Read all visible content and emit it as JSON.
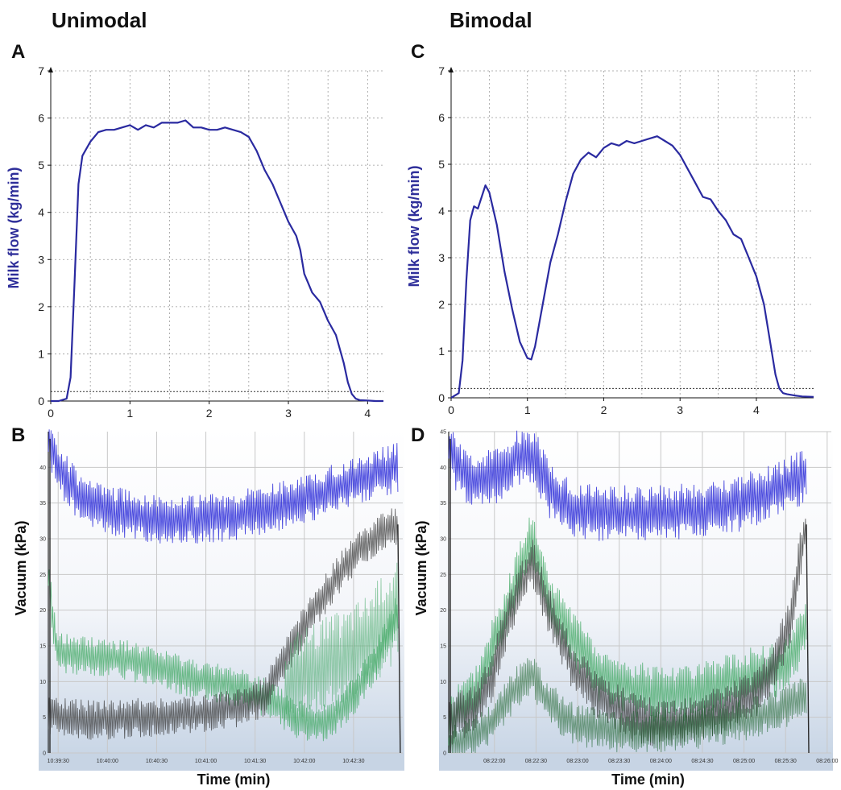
{
  "columns": {
    "left": "Unimodal",
    "right": "Bimodal"
  },
  "panels": {
    "A": "A",
    "B": "B",
    "C": "C",
    "D": "D"
  },
  "colors": {
    "flow": "#2a2aa0",
    "vacuum_mouthpiece": "#2a2ad8",
    "vacuum_green": "#3fa862",
    "vacuum_dark": "#3a3a3a",
    "vacuum_darkgreen": "#0d5a1e"
  },
  "chart_data": [
    {
      "panel": "A",
      "type": "line",
      "ylabel": "Milk flow (kg/min)",
      "xlim": [
        0,
        4.2
      ],
      "ylim": [
        0,
        7
      ],
      "xticks": [
        0,
        1,
        2,
        3,
        4
      ],
      "yticks": [
        0,
        1,
        2,
        3,
        4,
        5,
        6,
        7
      ],
      "grid": true,
      "threshold": 0.2,
      "series": [
        {
          "x": [
            0,
            0.1,
            0.2,
            0.25,
            0.3,
            0.35,
            0.4,
            0.45,
            0.5,
            0.6,
            0.7,
            0.8,
            0.9,
            1.0,
            1.1,
            1.2,
            1.3,
            1.4,
            1.5,
            1.6,
            1.7,
            1.8,
            1.9,
            2.0,
            2.1,
            2.2,
            2.3,
            2.4,
            2.5,
            2.6,
            2.7,
            2.8,
            2.9,
            3.0,
            3.1,
            3.15,
            3.2,
            3.3,
            3.4,
            3.5,
            3.6,
            3.7,
            3.75,
            3.8,
            3.85,
            3.9,
            4.0,
            4.1,
            4.2
          ],
          "y": [
            0,
            0,
            0.05,
            0.5,
            2.5,
            4.6,
            5.2,
            5.35,
            5.5,
            5.7,
            5.75,
            5.75,
            5.8,
            5.85,
            5.75,
            5.85,
            5.8,
            5.9,
            5.9,
            5.9,
            5.95,
            5.8,
            5.8,
            5.75,
            5.75,
            5.8,
            5.75,
            5.7,
            5.6,
            5.3,
            4.9,
            4.6,
            4.2,
            3.8,
            3.5,
            3.2,
            2.7,
            2.3,
            2.1,
            1.7,
            1.4,
            0.8,
            0.4,
            0.15,
            0.05,
            0.02,
            0.01,
            0,
            0
          ]
        }
      ]
    },
    {
      "panel": "B",
      "type": "line",
      "ylabel": "Vacuum (kPa)",
      "xlabel": "Time (min)",
      "ylim": [
        0,
        45
      ],
      "yticks": [
        0,
        5,
        10,
        15,
        20,
        25,
        30,
        35,
        40
      ],
      "xticks": [
        "10:39:30",
        "10:40:00",
        "10:40:30",
        "10:41:00",
        "10:41:30",
        "10:42:00",
        "10:42:30"
      ],
      "xlim": [
        0,
        3.6
      ],
      "xtick_pos": [
        0.1,
        0.6,
        1.1,
        1.6,
        2.1,
        2.6,
        3.1
      ],
      "grid": true,
      "series": [
        {
          "x": [
            0,
            0.1,
            0.3,
            0.6,
            1.0,
            1.4,
            1.8,
            2.2,
            2.6,
            3.0,
            3.3,
            3.55
          ],
          "y": [
            44,
            40,
            36,
            34,
            33,
            32.5,
            33,
            34,
            35.5,
            37.5,
            39,
            40
          ],
          "amp": 3.5
        },
        {
          "x": [
            0,
            0.05,
            0.1,
            0.4,
            0.8,
            1.2,
            1.6,
            2.0,
            2.3,
            2.5,
            2.7,
            2.9,
            3.1,
            3.3,
            3.5,
            3.55
          ],
          "y": [
            25,
            18,
            14,
            13.5,
            13,
            11.5,
            10,
            9,
            7,
            5,
            4,
            5,
            8,
            12,
            18,
            20
          ],
          "amp": 2.8
        },
        {
          "x": [
            0,
            0.05,
            0.1,
            0.5,
            1.0,
            1.5,
            2.0,
            2.2,
            2.4,
            2.6,
            2.8,
            3.0,
            3.2,
            3.4,
            3.55
          ],
          "y": [
            5,
            6,
            5,
            4.5,
            5,
            5.5,
            6.5,
            8,
            13,
            18,
            22,
            26,
            29,
            31,
            32
          ],
          "amp": 2.8
        },
        {
          "x": [
            2.4,
            2.6,
            2.8,
            3.0,
            3.2,
            3.4,
            3.55
          ],
          "y": [
            9,
            11,
            12,
            13,
            15,
            18,
            20
          ],
          "amp": 7
        }
      ]
    },
    {
      "panel": "C",
      "type": "line",
      "ylabel": "Milk flow (kg/min)",
      "xlim": [
        0,
        4.75
      ],
      "ylim": [
        0,
        7
      ],
      "xticks": [
        0,
        1,
        2,
        3,
        4
      ],
      "yticks": [
        0,
        1,
        2,
        3,
        4,
        5,
        6,
        7
      ],
      "grid": true,
      "threshold": 0.2,
      "series": [
        {
          "x": [
            0,
            0.1,
            0.15,
            0.2,
            0.25,
            0.3,
            0.35,
            0.4,
            0.45,
            0.5,
            0.6,
            0.7,
            0.8,
            0.9,
            1.0,
            1.05,
            1.1,
            1.2,
            1.3,
            1.4,
            1.5,
            1.6,
            1.7,
            1.8,
            1.9,
            2.0,
            2.1,
            2.2,
            2.3,
            2.4,
            2.5,
            2.6,
            2.7,
            2.8,
            2.9,
            3.0,
            3.1,
            3.2,
            3.3,
            3.4,
            3.5,
            3.6,
            3.7,
            3.8,
            3.9,
            4.0,
            4.1,
            4.2,
            4.25,
            4.3,
            4.35,
            4.4,
            4.5,
            4.6,
            4.75
          ],
          "y": [
            0,
            0.1,
            0.8,
            2.5,
            3.8,
            4.1,
            4.05,
            4.3,
            4.55,
            4.4,
            3.7,
            2.7,
            1.9,
            1.2,
            0.85,
            0.82,
            1.1,
            2.0,
            2.9,
            3.5,
            4.2,
            4.8,
            5.1,
            5.25,
            5.15,
            5.35,
            5.45,
            5.4,
            5.5,
            5.45,
            5.5,
            5.55,
            5.6,
            5.5,
            5.4,
            5.2,
            4.9,
            4.6,
            4.3,
            4.25,
            4.0,
            3.8,
            3.5,
            3.4,
            3.0,
            2.6,
            2.0,
            1.0,
            0.5,
            0.2,
            0.1,
            0.08,
            0.05,
            0.03,
            0.02
          ]
        }
      ]
    },
    {
      "panel": "D",
      "type": "line",
      "ylabel": "Vacuum (kPa)",
      "xlabel": "Time (min)",
      "ylim": [
        0,
        45
      ],
      "yticks": [
        0,
        5,
        10,
        15,
        20,
        25,
        30,
        35,
        40,
        45
      ],
      "xticks": [
        "08:22:00",
        "08:22:30",
        "08:23:00",
        "08:23:30",
        "08:24:00",
        "08:24:30",
        "08:25:00",
        "08:25:30",
        "08:26:00"
      ],
      "xlim": [
        0,
        4.6
      ],
      "xtick_pos": [
        0.55,
        1.05,
        1.55,
        2.05,
        2.55,
        3.05,
        3.55,
        4.05,
        4.55
      ],
      "grid": true,
      "series": [
        {
          "x": [
            0,
            0.1,
            0.3,
            0.6,
            0.9,
            1.05,
            1.2,
            1.5,
            2.0,
            2.5,
            3.0,
            3.5,
            4.0,
            4.3
          ],
          "y": [
            43,
            40,
            38,
            39,
            42,
            41,
            37,
            34,
            33.5,
            33.5,
            34,
            35,
            37,
            39
          ],
          "amp": 4
        },
        {
          "x": [
            0,
            0.1,
            0.3,
            0.5,
            0.7,
            0.9,
            1.0,
            1.2,
            1.5,
            1.8,
            2.2,
            2.6,
            3.0,
            3.4,
            3.7,
            4.0,
            4.2,
            4.3
          ],
          "y": [
            3,
            6,
            8,
            14,
            20,
            27,
            30,
            22,
            16,
            11,
            9,
            8,
            8.5,
            10,
            11,
            12,
            15,
            18
          ],
          "amp": 4
        },
        {
          "x": [
            0,
            0.1,
            0.3,
            0.5,
            0.7,
            0.9,
            1.0,
            1.2,
            1.5,
            1.8,
            2.2,
            2.6,
            3.0,
            3.4,
            3.7,
            3.9,
            4.1,
            4.2,
            4.3
          ],
          "y": [
            4,
            5,
            6,
            10,
            18,
            24,
            27,
            20,
            12,
            8,
            5,
            4,
            5,
            6.5,
            8.5,
            12,
            18,
            26,
            32
          ],
          "amp": 3.5
        },
        {
          "x": [
            0,
            0.2,
            0.5,
            0.8,
            1.0,
            1.2,
            1.5,
            2.0,
            2.5,
            3.0,
            3.5,
            4.0,
            4.3
          ],
          "y": [
            1,
            1.5,
            4,
            9,
            11,
            7,
            4,
            3,
            3,
            3.5,
            4.5,
            6,
            8
          ],
          "amp": 3
        }
      ]
    }
  ]
}
